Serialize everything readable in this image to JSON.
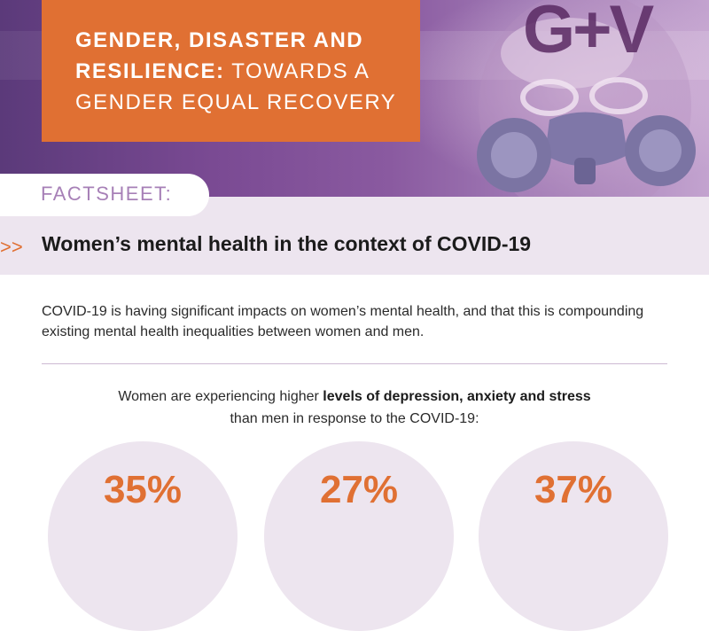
{
  "header": {
    "title_bold_line1": "GENDER, DISASTER AND",
    "title_bold_line2": "RESILIENCE:",
    "title_rest_line2": " TOWARDS A",
    "title_line3": "GENDER EQUAL RECOVERY",
    "logo": "G+V"
  },
  "factsheet": {
    "label": "FACTSHEET:",
    "arrows": ">>",
    "subtitle": "Women’s mental health in the context of COVID-19"
  },
  "intro": "COVID-19 is having significant impacts on women’s mental health, and that this is compounding existing mental health inequalities between women and men.",
  "lead": {
    "before": "Women are experiencing higher ",
    "bold": "levels of depression, anxiety and stress",
    "after": "than men in response to the COVID-19:"
  },
  "stats": [
    "35%",
    "27%",
    "37%"
  ],
  "colors": {
    "orange": "#e07033",
    "purple": "#5a2a63",
    "lavender": "#ede5ef"
  }
}
